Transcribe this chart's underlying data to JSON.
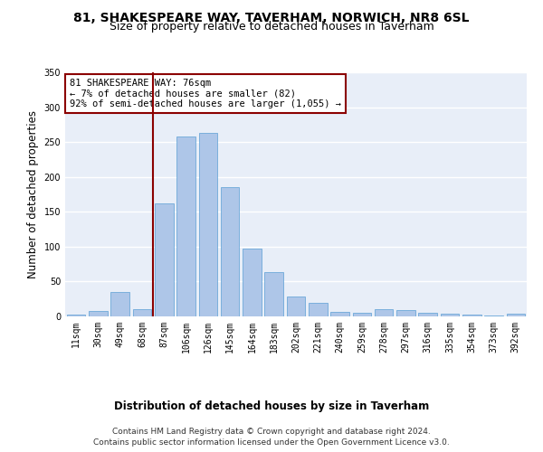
{
  "title1": "81, SHAKESPEARE WAY, TAVERHAM, NORWICH, NR8 6SL",
  "title2": "Size of property relative to detached houses in Taverham",
  "xlabel": "Distribution of detached houses by size in Taverham",
  "ylabel": "Number of detached properties",
  "categories": [
    "11sqm",
    "30sqm",
    "49sqm",
    "68sqm",
    "87sqm",
    "106sqm",
    "126sqm",
    "145sqm",
    "164sqm",
    "183sqm",
    "202sqm",
    "221sqm",
    "240sqm",
    "259sqm",
    "278sqm",
    "297sqm",
    "316sqm",
    "335sqm",
    "354sqm",
    "373sqm",
    "392sqm"
  ],
  "values": [
    3,
    8,
    35,
    10,
    162,
    258,
    263,
    185,
    97,
    63,
    29,
    20,
    6,
    5,
    10,
    9,
    5,
    4,
    3,
    1,
    4
  ],
  "bar_color": "#aec6e8",
  "bar_edge_color": "#5a9fd4",
  "vline_index": 4,
  "vline_color": "#8b0000",
  "annotation_text": "81 SHAKESPEARE WAY: 76sqm\n← 7% of detached houses are smaller (82)\n92% of semi-detached houses are larger (1,055) →",
  "annotation_box_color": "#ffffff",
  "annotation_box_edge": "#8b0000",
  "ylim": [
    0,
    350
  ],
  "yticks": [
    0,
    50,
    100,
    150,
    200,
    250,
    300,
    350
  ],
  "footer1": "Contains HM Land Registry data © Crown copyright and database right 2024.",
  "footer2": "Contains public sector information licensed under the Open Government Licence v3.0.",
  "bg_color": "#e8eef8",
  "grid_color": "#ffffff",
  "title1_fontsize": 10,
  "title2_fontsize": 9,
  "axis_label_fontsize": 8.5,
  "tick_fontsize": 7,
  "annotation_fontsize": 7.5,
  "footer_fontsize": 6.5
}
